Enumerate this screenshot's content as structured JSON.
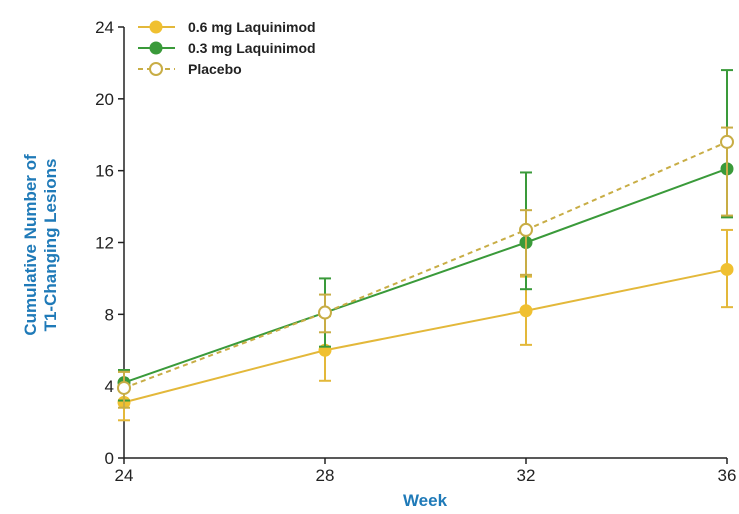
{
  "colors": {
    "laq06": "#f0c030",
    "laq06_line": "#e3b83a",
    "laq03": "#3a9a3a",
    "placebo": "#c8ad45",
    "axis_title": "#1f7ab8",
    "axis": "#222222"
  },
  "chart_data": {
    "type": "line",
    "xlabel": "Week",
    "ylabel_lines": [
      "Cumulative Number of",
      "T1-Changing Lesions"
    ],
    "x": [
      24,
      28,
      32,
      36
    ],
    "xlim": [
      24,
      36
    ],
    "ylim": [
      0,
      24
    ],
    "xticks": [
      "24",
      "28",
      "32",
      "36"
    ],
    "yticks": [
      "0",
      "4",
      "8",
      "12",
      "16",
      "20",
      "24"
    ],
    "grid": false,
    "legend_position": "top-left",
    "series": [
      {
        "name": "0.6 mg Laquinimod",
        "color_key": "laq06",
        "line_color_key": "laq06_line",
        "marker": "filled-circle",
        "line_style": "solid",
        "values": [
          3.1,
          6.0,
          8.2,
          10.5
        ],
        "err_low": [
          2.1,
          4.3,
          6.3,
          8.4
        ],
        "err_high": [
          4.8,
          7.9,
          10.1,
          12.7
        ]
      },
      {
        "name": "0.3 mg Laquinimod",
        "color_key": "laq03",
        "line_color_key": "laq03",
        "marker": "filled-circle",
        "line_style": "solid",
        "values": [
          4.2,
          8.1,
          12.0,
          16.1
        ],
        "err_low": [
          3.2,
          6.2,
          9.4,
          13.4
        ],
        "err_high": [
          4.9,
          10.0,
          15.9,
          21.6
        ]
      },
      {
        "name": "Placebo",
        "color_key": "placebo",
        "line_color_key": "placebo",
        "marker": "open-circle",
        "line_style": "dashed",
        "values": [
          3.9,
          8.1,
          12.7,
          17.6
        ],
        "err_low": [
          2.8,
          7.0,
          10.2,
          13.5
        ],
        "err_high": [
          4.8,
          9.1,
          13.8,
          18.4
        ]
      }
    ]
  }
}
